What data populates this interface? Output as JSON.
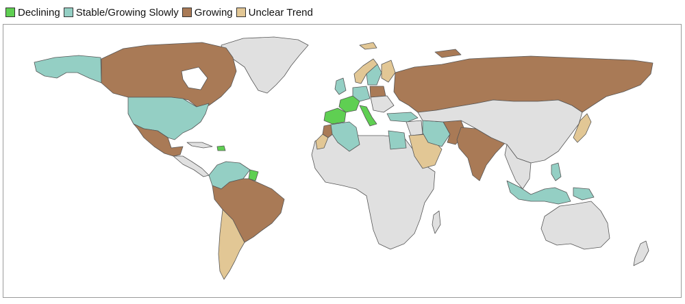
{
  "legend": {
    "items": [
      {
        "label": "Declining",
        "color": "#5fcf52"
      },
      {
        "label": "Stable/Growing Slowly",
        "color": "#94cfc4"
      },
      {
        "label": "Growing",
        "color": "#a97a56"
      },
      {
        "label": "Unclear Trend",
        "color": "#e2c795"
      }
    ]
  },
  "map": {
    "no_data_color": "#e0e0e0",
    "border_color": "#555555",
    "regions": {
      "declining": [
        "France",
        "Spain",
        "Italy",
        "Haiti",
        "French Guiana"
      ],
      "stable": [
        "Alaska",
        "United States",
        "Algeria",
        "Egypt",
        "Iran",
        "Turkey",
        "Colombia",
        "Venezuela",
        "United Kingdom",
        "Germany",
        "Sweden",
        "Philippines",
        "Indonesia",
        "Malaysia",
        "Papua New Guinea"
      ],
      "growing": [
        "Canada",
        "Mexico",
        "Brazil",
        "Peru",
        "Bolivia",
        "Paraguay",
        "Russia",
        "India",
        "Pakistan",
        "Afghanistan",
        "Poland",
        "Morocco"
      ],
      "unclear": [
        "Argentina",
        "Chile",
        "Saudi Arabia",
        "Norway",
        "Finland",
        "Japan",
        "Western Sahara"
      ]
    }
  }
}
